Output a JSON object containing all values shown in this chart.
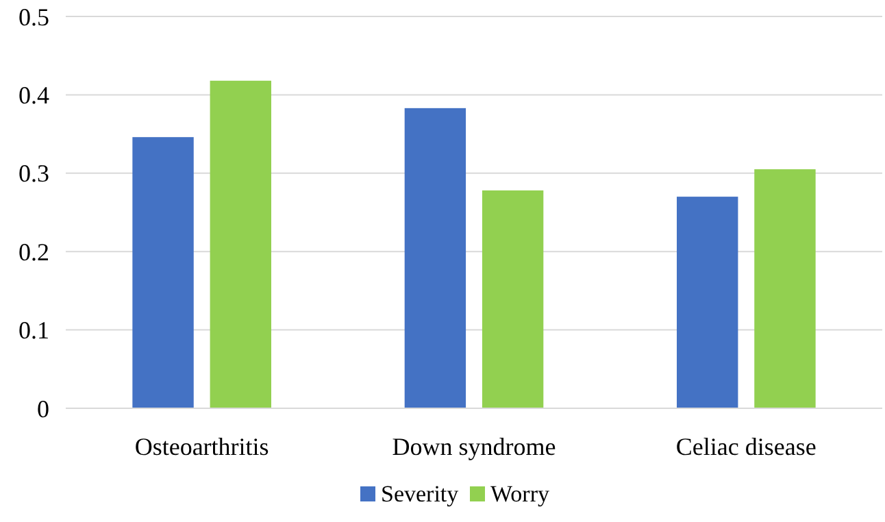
{
  "chart_data": {
    "type": "bar",
    "categories": [
      "Osteoarthritis",
      "Down syndrome",
      "Celiac disease"
    ],
    "series": [
      {
        "name": "Severity",
        "color": "#4472c4",
        "values": [
          0.346,
          0.383,
          0.27
        ]
      },
      {
        "name": "Worry",
        "color": "#92d050",
        "values": [
          0.418,
          0.278,
          0.305
        ]
      }
    ],
    "ylim": [
      0,
      0.5
    ],
    "yticks": [
      0,
      0.1,
      0.2,
      0.3,
      0.4,
      0.5
    ],
    "grid": "y",
    "legend": "bottom"
  }
}
